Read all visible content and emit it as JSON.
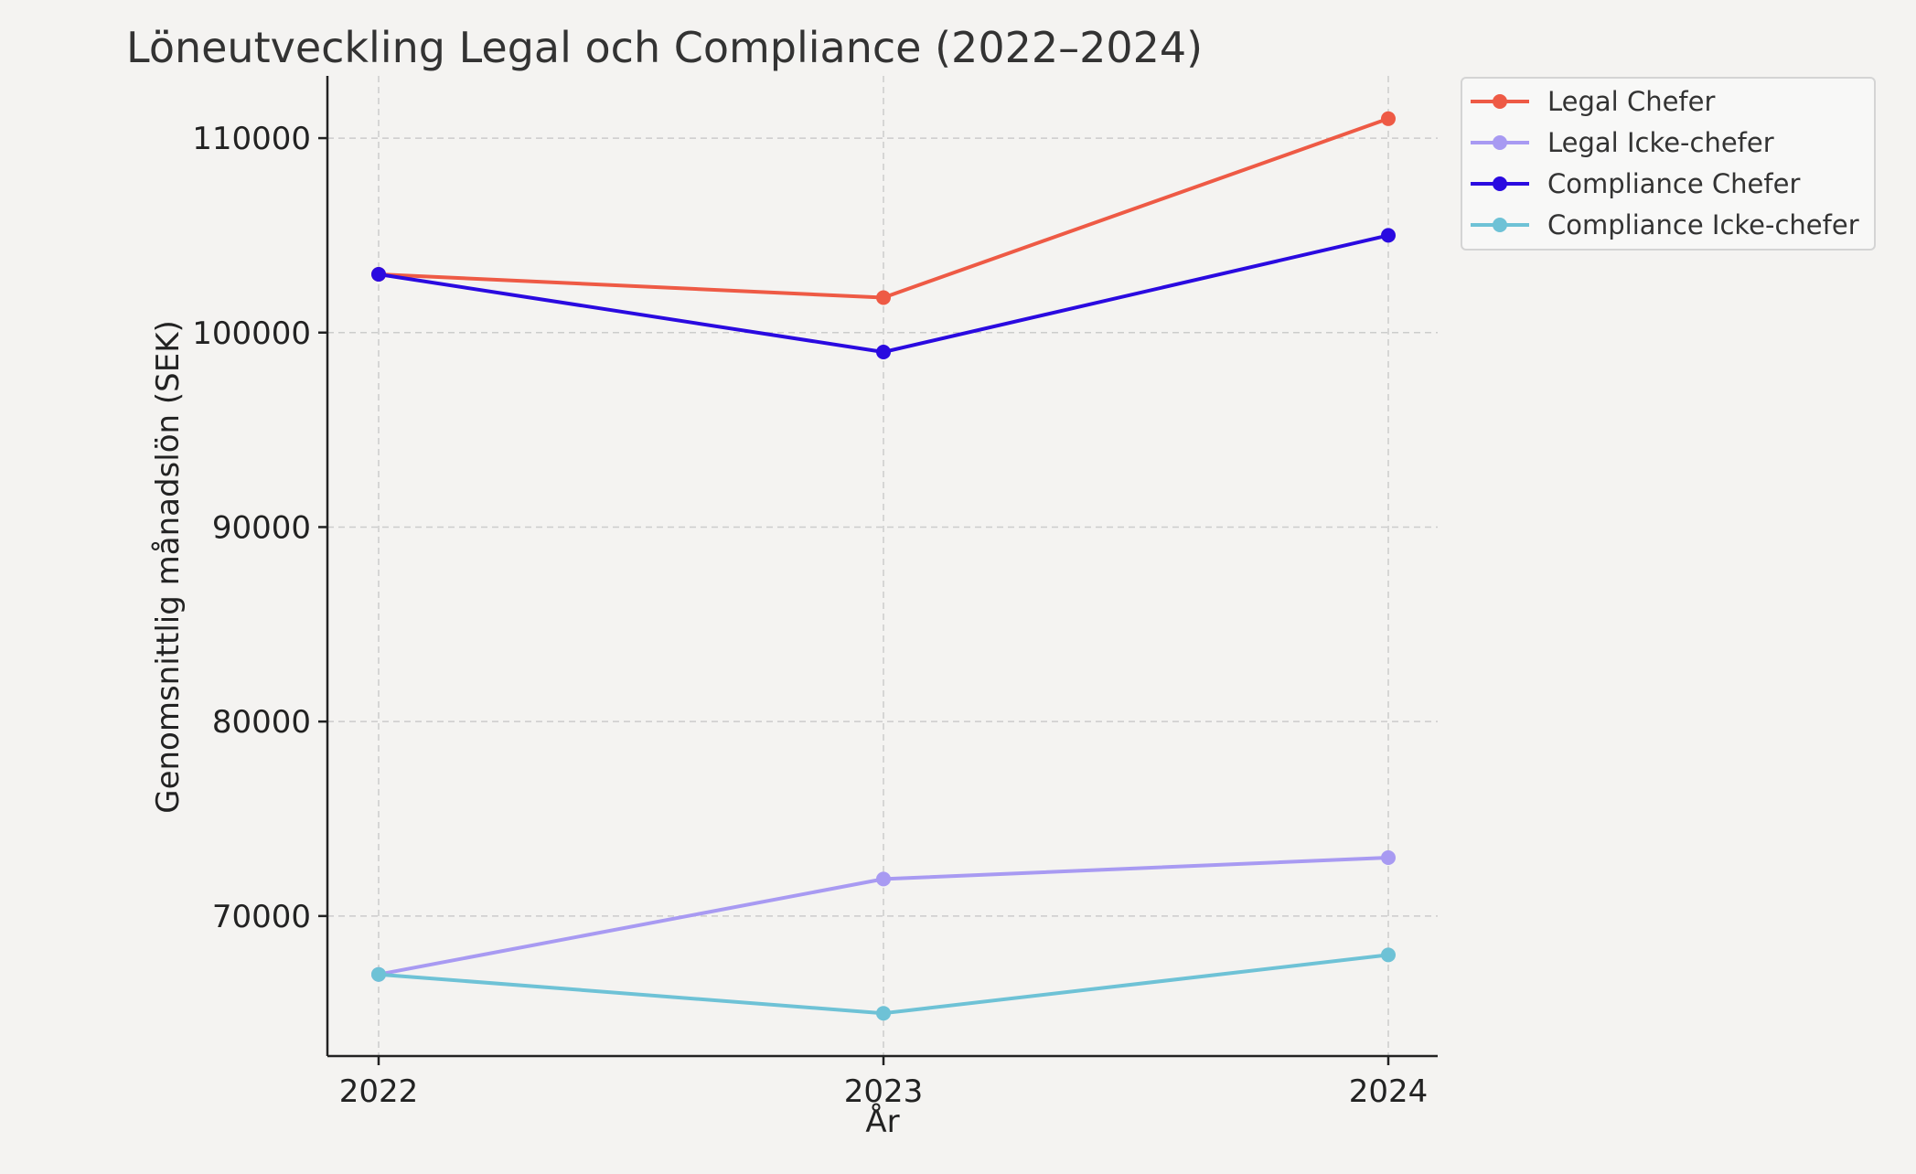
{
  "chart_data": {
    "type": "line",
    "title": "Löneutveckling Legal och Compliance (2022–2024)",
    "xlabel": "År",
    "ylabel": "Genomsnittlig månadslön (SEK)",
    "categories": [
      "2022",
      "2023",
      "2024"
    ],
    "ylim": [
      62800,
      113200
    ],
    "yticks": [
      70000,
      80000,
      90000,
      100000,
      110000
    ],
    "grid": true,
    "legend_position": "top-right, outside plot",
    "series": [
      {
        "name": "Legal Chefer",
        "color": "#ee5a45",
        "values": [
          103000,
          101800,
          111000
        ]
      },
      {
        "name": "Legal Icke-chefer",
        "color": "#a89af2",
        "values": [
          67000,
          71900,
          73000
        ]
      },
      {
        "name": "Compliance Chefer",
        "color": "#2a0ae0",
        "values": [
          103000,
          99000,
          105000
        ]
      },
      {
        "name": "Compliance Icke-chefer",
        "color": "#6ec2d6",
        "values": [
          67000,
          65000,
          68000
        ]
      }
    ]
  }
}
